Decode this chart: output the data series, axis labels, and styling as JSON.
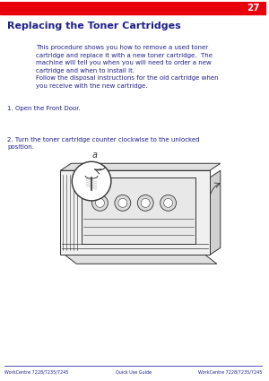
{
  "page_number": "27",
  "header_bg_color": "#E8000D",
  "header_text_color": "#FFFFFF",
  "title": "Replacing the Toner Cartridges",
  "title_color": "#1F1F8C",
  "body_color": "#1F1F8C",
  "body_text": "This procedure shows you how to remove a used toner\ncartridge and replace it with a new toner cartridge.  The\nmachine will tell you when you will need to order a new\ncartridge and when to install it.\nFollow the disposal instructions for the old cartridge when\nyou receive with the new cartridge.",
  "step1_text": "1. Open the Front Door.",
  "step2_text": "2. Turn the toner cartridge counter clockwise to the unlocked\nposition.",
  "footer_text_left": "WorkCentre 7228/7235/7245",
  "footer_text_center": "Quick Use Guide",
  "footer_text_right": "WorkCentre 7228/7235/7245",
  "footer_color": "#1F1F8C",
  "footer_line_color": "#3333AA",
  "bg_color": "#FFFFFF",
  "line_color": "#333333"
}
